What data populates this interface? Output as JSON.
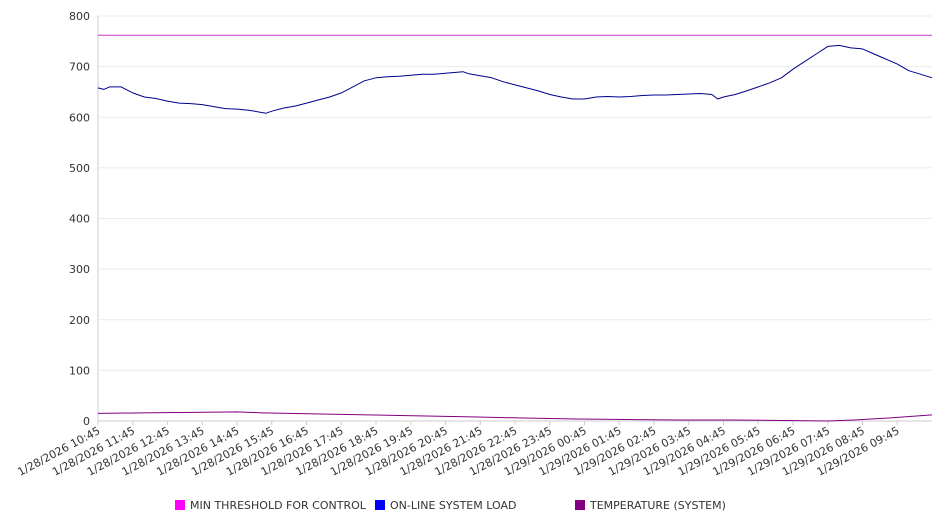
{
  "chart_data": {
    "type": "line",
    "title": "",
    "xlabel": "",
    "ylabel": "",
    "ylim": [
      0,
      800
    ],
    "yticks": [
      0,
      100,
      200,
      300,
      400,
      500,
      600,
      700,
      800
    ],
    "grid": true,
    "legend_position": "bottom",
    "x_tick_labels": [
      "1/28/2026 10:45",
      "1/28/2026 11:45",
      "1/28/2026 12:45",
      "1/28/2026 13:45",
      "1/28/2026 14:45",
      "1/28/2026 15:45",
      "1/28/2026 16:45",
      "1/28/2026 17:45",
      "1/28/2026 18:45",
      "1/28/2026 19:45",
      "1/28/2026 20:45",
      "1/28/2026 21:45",
      "1/28/2026 22:45",
      "1/28/2026 23:45",
      "1/29/2026 00:45",
      "1/29/2026 01:45",
      "1/29/2026 02:45",
      "1/29/2026 03:45",
      "1/29/2026 04:45",
      "1/29/2026 05:45",
      "1/29/2026 06:45",
      "1/29/2026 07:45",
      "1/29/2026 08:45",
      "1/29/2026 09:45"
    ],
    "x_start": "1/28/2026 10:45",
    "x_end": "1/29/2026 10:45",
    "series": [
      {
        "name": "MIN THRESHOLD FOR CONTROL",
        "color": "#cc33cc",
        "legend_color": "#ff00ff",
        "points": [
          [
            "1/28/2026 10:45",
            762
          ],
          [
            "1/29/2026 10:45",
            762
          ]
        ]
      },
      {
        "name": "ON-LINE SYSTEM LOAD",
        "color": "#00008b",
        "legend_color": "#0000ff",
        "points": [
          [
            "1/28/2026 10:45",
            658
          ],
          [
            "1/28/2026 10:55",
            655
          ],
          [
            "1/28/2026 11:05",
            660
          ],
          [
            "1/28/2026 11:25",
            660
          ],
          [
            "1/28/2026 11:45",
            648
          ],
          [
            "1/28/2026 12:05",
            640
          ],
          [
            "1/28/2026 12:25",
            637
          ],
          [
            "1/28/2026 12:45",
            632
          ],
          [
            "1/28/2026 13:05",
            628
          ],
          [
            "1/28/2026 13:25",
            627
          ],
          [
            "1/28/2026 13:45",
            625
          ],
          [
            "1/28/2026 14:05",
            621
          ],
          [
            "1/28/2026 14:25",
            617
          ],
          [
            "1/28/2026 14:45",
            616
          ],
          [
            "1/28/2026 15:05",
            614
          ],
          [
            "1/28/2026 15:25",
            610
          ],
          [
            "1/28/2026 15:35",
            608
          ],
          [
            "1/28/2026 15:45",
            612
          ],
          [
            "1/28/2026 16:05",
            618
          ],
          [
            "1/28/2026 16:25",
            622
          ],
          [
            "1/28/2026 16:45",
            628
          ],
          [
            "1/28/2026 17:05",
            634
          ],
          [
            "1/28/2026 17:25",
            640
          ],
          [
            "1/28/2026 17:45",
            648
          ],
          [
            "1/28/2026 18:05",
            660
          ],
          [
            "1/28/2026 18:25",
            672
          ],
          [
            "1/28/2026 18:45",
            678
          ],
          [
            "1/28/2026 19:05",
            680
          ],
          [
            "1/28/2026 19:25",
            681
          ],
          [
            "1/28/2026 19:45",
            683
          ],
          [
            "1/28/2026 20:05",
            685
          ],
          [
            "1/28/2026 20:25",
            685
          ],
          [
            "1/28/2026 20:45",
            687
          ],
          [
            "1/28/2026 21:05",
            689
          ],
          [
            "1/28/2026 21:15",
            690
          ],
          [
            "1/28/2026 21:25",
            686
          ],
          [
            "1/28/2026 21:45",
            682
          ],
          [
            "1/28/2026 22:05",
            678
          ],
          [
            "1/28/2026 22:25",
            670
          ],
          [
            "1/28/2026 22:45",
            664
          ],
          [
            "1/28/2026 23:05",
            658
          ],
          [
            "1/28/2026 23:25",
            652
          ],
          [
            "1/28/2026 23:45",
            645
          ],
          [
            "1/29/2026 00:05",
            640
          ],
          [
            "1/29/2026 00:25",
            636
          ],
          [
            "1/29/2026 00:45",
            636
          ],
          [
            "1/29/2026 01:05",
            640
          ],
          [
            "1/29/2026 01:25",
            641
          ],
          [
            "1/29/2026 01:45",
            640
          ],
          [
            "1/29/2026 02:05",
            641
          ],
          [
            "1/29/2026 02:25",
            643
          ],
          [
            "1/29/2026 02:45",
            644
          ],
          [
            "1/29/2026 03:05",
            644
          ],
          [
            "1/29/2026 03:25",
            645
          ],
          [
            "1/29/2026 03:45",
            646
          ],
          [
            "1/29/2026 04:05",
            647
          ],
          [
            "1/29/2026 04:25",
            645
          ],
          [
            "1/29/2026 04:35",
            636
          ],
          [
            "1/29/2026 04:45",
            640
          ],
          [
            "1/29/2026 05:05",
            645
          ],
          [
            "1/29/2026 05:25",
            652
          ],
          [
            "1/29/2026 05:45",
            660
          ],
          [
            "1/29/2026 06:05",
            668
          ],
          [
            "1/29/2026 06:25",
            678
          ],
          [
            "1/29/2026 06:45",
            695
          ],
          [
            "1/29/2026 07:05",
            710
          ],
          [
            "1/29/2026 07:25",
            725
          ],
          [
            "1/29/2026 07:45",
            740
          ],
          [
            "1/29/2026 08:05",
            742
          ],
          [
            "1/29/2026 08:25",
            737
          ],
          [
            "1/29/2026 08:45",
            735
          ],
          [
            "1/29/2026 09:05",
            725
          ],
          [
            "1/29/2026 09:25",
            715
          ],
          [
            "1/29/2026 09:45",
            705
          ],
          [
            "1/29/2026 10:05",
            692
          ],
          [
            "1/29/2026 10:25",
            685
          ],
          [
            "1/29/2026 10:45",
            678
          ]
        ]
      },
      {
        "name": "TEMPERATURE (SYSTEM)",
        "color": "#800080",
        "legend_color": "#800080",
        "points": [
          [
            "1/28/2026 10:45",
            15
          ],
          [
            "1/28/2026 12:00",
            16
          ],
          [
            "1/28/2026 13:30",
            17
          ],
          [
            "1/28/2026 14:45",
            18
          ],
          [
            "1/28/2026 15:30",
            16
          ],
          [
            "1/28/2026 17:00",
            14
          ],
          [
            "1/28/2026 18:30",
            12
          ],
          [
            "1/28/2026 20:00",
            10
          ],
          [
            "1/28/2026 21:30",
            8
          ],
          [
            "1/28/2026 23:00",
            6
          ],
          [
            "1/29/2026 00:30",
            4
          ],
          [
            "1/29/2026 02:00",
            3
          ],
          [
            "1/29/2026 03:30",
            2
          ],
          [
            "1/29/2026 05:00",
            2
          ],
          [
            "1/29/2026 06:30",
            1
          ],
          [
            "1/29/2026 07:45",
            0
          ],
          [
            "1/29/2026 08:30",
            2
          ],
          [
            "1/29/2026 09:30",
            6
          ],
          [
            "1/29/2026 10:45",
            12
          ]
        ]
      }
    ]
  }
}
